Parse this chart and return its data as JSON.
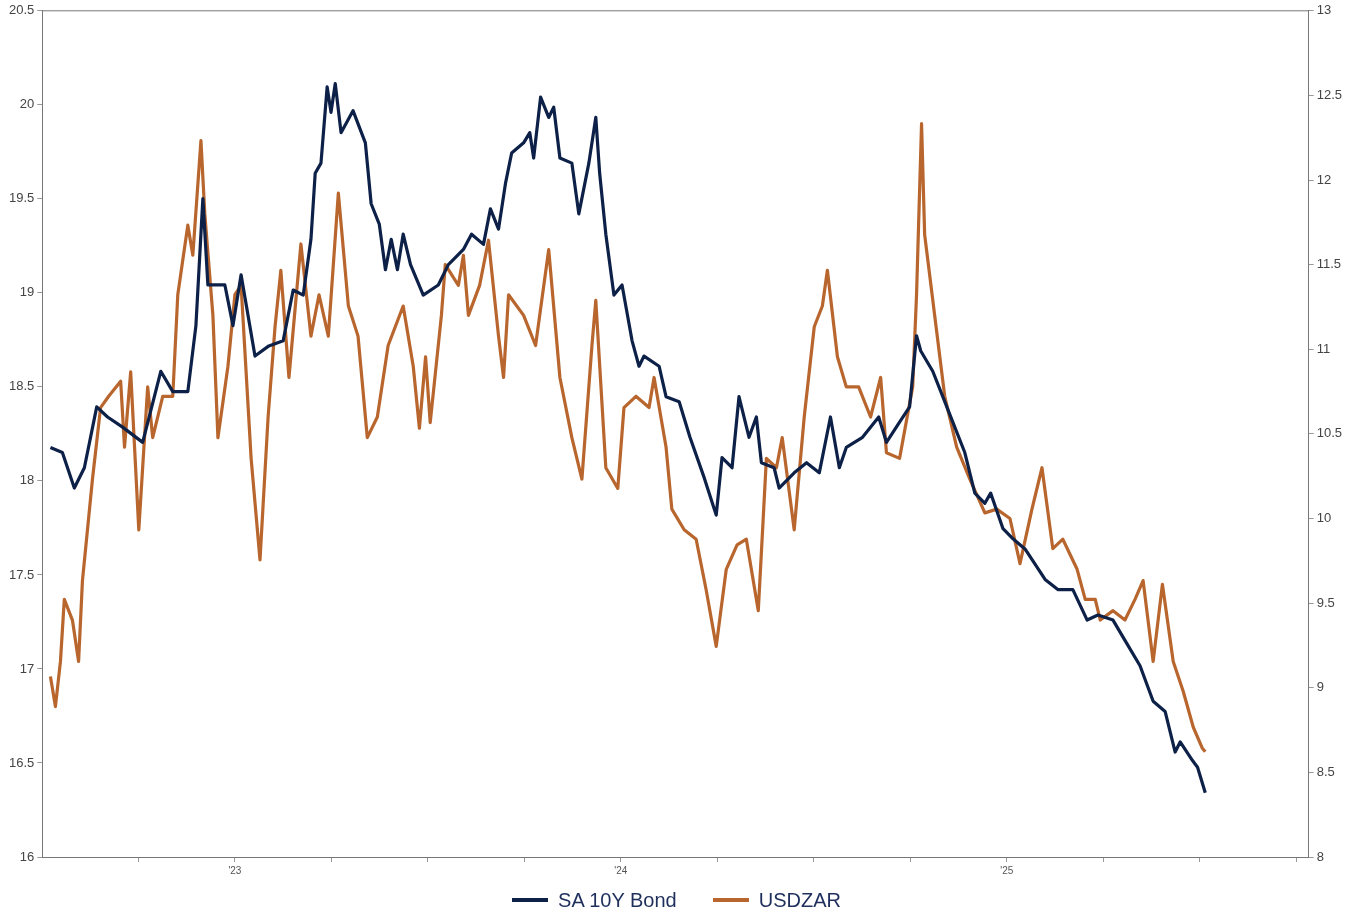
{
  "chart_data": {
    "type": "line",
    "legend": "bottom",
    "grid": false,
    "marker": "none",
    "line_style": "solid",
    "xlim": [
      2022.501,
      2025.782
    ],
    "xticks": [
      {
        "value": 2022.75,
        "label": null
      },
      {
        "value": 2023,
        "label": "'23"
      },
      {
        "value": 2023.25,
        "label": null
      },
      {
        "value": 2023.5,
        "label": null
      },
      {
        "value": 2023.75,
        "label": null
      },
      {
        "value": 2024,
        "label": "'24"
      },
      {
        "value": 2024.25,
        "label": null
      },
      {
        "value": 2024.5,
        "label": null
      },
      {
        "value": 2024.75,
        "label": null
      },
      {
        "value": 2025,
        "label": "'25"
      },
      {
        "value": 2025.25,
        "label": null
      },
      {
        "value": 2025.5,
        "label": null
      },
      {
        "value": 2025.75,
        "label": null
      }
    ],
    "ylim": [
      16,
      20.5
    ],
    "yticks": [
      16,
      16.5,
      17,
      17.5,
      18,
      18.5,
      19,
      19.5,
      20,
      20.5
    ],
    "y2lim": [
      8,
      13
    ],
    "y2ticks": [
      8,
      8.5,
      9,
      9.5,
      10,
      10.5,
      11,
      11.5,
      12,
      12.5,
      13
    ],
    "series": [
      {
        "name": "SA 10Y Bond",
        "color": "#0d2148",
        "axis": "y2",
        "x": [
          2022.522,
          2022.553,
          2022.584,
          2022.61,
          2022.642,
          2022.67,
          2022.709,
          2022.761,
          2022.808,
          2022.839,
          2022.878,
          2022.899,
          2022.917,
          2022.93,
          2022.974,
          2022.995,
          2023.016,
          2023.052,
          2023.088,
          2023.125,
          2023.151,
          2023.177,
          2023.197,
          2023.208,
          2023.223,
          2023.239,
          2023.249,
          2023.26,
          2023.275,
          2023.306,
          2023.338,
          2023.353,
          2023.374,
          2023.39,
          2023.405,
          2023.421,
          2023.436,
          2023.455,
          2023.488,
          2023.527,
          2023.553,
          2023.592,
          2023.613,
          2023.644,
          2023.662,
          2023.683,
          2023.701,
          2023.717,
          2023.748,
          2023.764,
          2023.774,
          2023.792,
          2023.813,
          2023.826,
          2023.842,
          2023.873,
          2023.891,
          2023.917,
          2023.935,
          2023.945,
          2023.961,
          2023.982,
          2024.003,
          2024.029,
          2024.047,
          2024.06,
          2024.099,
          2024.117,
          2024.151,
          2024.179,
          2024.216,
          2024.247,
          2024.262,
          2024.288,
          2024.306,
          2024.332,
          2024.351,
          2024.364,
          2024.397,
          2024.41,
          2024.449,
          2024.481,
          2024.514,
          2024.543,
          2024.566,
          2024.584,
          2024.626,
          2024.668,
          2024.688,
          2024.722,
          2024.748,
          2024.766,
          2024.777,
          2024.808,
          2024.834,
          2024.86,
          2024.891,
          2024.917,
          2024.943,
          2024.958,
          2024.99,
          2025.016,
          2025.047,
          2025.073,
          2025.099,
          2025.132,
          2025.171,
          2025.208,
          2025.236,
          2025.275,
          2025.306,
          2025.345,
          2025.379,
          2025.41,
          2025.436,
          2025.449,
          2025.481,
          2025.494,
          2025.514
        ],
        "values": [
          10.42,
          10.39,
          10.18,
          10.3,
          10.66,
          10.6,
          10.54,
          10.45,
          10.87,
          10.75,
          10.75,
          11.14,
          11.89,
          11.38,
          11.38,
          11.14,
          11.44,
          10.96,
          11.02,
          11.05,
          11.35,
          11.32,
          11.65,
          12.04,
          12.1,
          12.55,
          12.4,
          12.57,
          12.28,
          12.41,
          12.22,
          11.86,
          11.74,
          11.47,
          11.65,
          11.47,
          11.68,
          11.5,
          11.32,
          11.38,
          11.5,
          11.59,
          11.68,
          11.62,
          11.83,
          11.71,
          11.98,
          12.16,
          12.22,
          12.28,
          12.13,
          12.49,
          12.37,
          12.43,
          12.13,
          12.1,
          11.8,
          12.1,
          12.37,
          12.04,
          11.68,
          11.32,
          11.38,
          11.05,
          10.9,
          10.96,
          10.9,
          10.72,
          10.69,
          10.48,
          10.24,
          10.02,
          10.36,
          10.3,
          10.72,
          10.48,
          10.6,
          10.33,
          10.3,
          10.18,
          10.27,
          10.33,
          10.27,
          10.6,
          10.3,
          10.42,
          10.48,
          10.6,
          10.45,
          10.57,
          10.66,
          11.08,
          10.99,
          10.87,
          10.72,
          10.57,
          10.39,
          10.15,
          10.09,
          10.15,
          9.94,
          9.88,
          9.82,
          9.73,
          9.64,
          9.58,
          9.58,
          9.4,
          9.43,
          9.4,
          9.28,
          9.13,
          8.92,
          8.86,
          8.62,
          8.68,
          8.57,
          8.53,
          8.38
        ]
      },
      {
        "name": "USDZAR",
        "color": "#b8662e",
        "x": [
          2022.522,
          2022.535,
          2022.548,
          2022.558,
          2022.579,
          2022.595,
          2022.605,
          2022.631,
          2022.652,
          2022.673,
          2022.704,
          2022.714,
          2022.73,
          2022.751,
          2022.774,
          2022.787,
          2022.813,
          2022.839,
          2022.852,
          2022.878,
          2022.891,
          2022.912,
          2022.922,
          2022.943,
          2022.956,
          2022.982,
          2023,
          2023.016,
          2023.042,
          2023.065,
          2023.086,
          2023.104,
          2023.119,
          2023.14,
          2023.171,
          2023.197,
          2023.218,
          2023.242,
          2023.268,
          2023.294,
          2023.319,
          2023.343,
          2023.369,
          2023.397,
          2023.436,
          2023.462,
          2023.478,
          2023.494,
          2023.506,
          2023.535,
          2023.545,
          2023.579,
          2023.592,
          2023.605,
          2023.634,
          2023.657,
          2023.683,
          2023.696,
          2023.709,
          2023.748,
          2023.779,
          2023.813,
          2023.842,
          2023.873,
          2023.899,
          2023.925,
          2023.935,
          2023.961,
          2023.992,
          2024.008,
          2024.039,
          2024.073,
          2024.086,
          2024.117,
          2024.132,
          2024.164,
          2024.195,
          2024.221,
          2024.247,
          2024.273,
          2024.301,
          2024.325,
          2024.356,
          2024.377,
          2024.403,
          2024.418,
          2024.449,
          2024.475,
          2024.501,
          2024.522,
          2024.535,
          2024.561,
          2024.584,
          2024.616,
          2024.647,
          2024.673,
          2024.688,
          2024.722,
          2024.756,
          2024.766,
          2024.779,
          2024.787,
          2024.813,
          2024.839,
          2024.87,
          2024.904,
          2024.943,
          2024.974,
          2025.008,
          2025.034,
          2025.065,
          2025.091,
          2025.119,
          2025.145,
          2025.182,
          2025.203,
          2025.229,
          2025.242,
          2025.275,
          2025.306,
          2025.332,
          2025.353,
          2025.379,
          2025.403,
          2025.431,
          2025.457,
          2025.483,
          2025.506,
          2025.514
        ],
        "values": [
          16.96,
          16.8,
          17.04,
          17.37,
          17.26,
          17.04,
          17.47,
          18.01,
          18.39,
          18.45,
          18.53,
          18.18,
          18.58,
          17.74,
          18.5,
          18.23,
          18.45,
          18.45,
          18.99,
          19.36,
          19.2,
          19.81,
          19.42,
          18.88,
          18.23,
          18.61,
          18.99,
          19.04,
          18.12,
          17.58,
          18.34,
          18.82,
          19.12,
          18.55,
          19.26,
          18.77,
          18.99,
          18.77,
          19.53,
          18.93,
          18.77,
          18.23,
          18.34,
          18.72,
          18.93,
          18.61,
          18.28,
          18.66,
          18.31,
          18.88,
          19.15,
          19.04,
          19.2,
          18.88,
          19.04,
          19.28,
          18.77,
          18.55,
          18.99,
          18.88,
          18.72,
          19.23,
          18.55,
          18.23,
          18.01,
          18.72,
          18.96,
          18.07,
          17.96,
          18.39,
          18.45,
          18.39,
          18.55,
          18.18,
          17.85,
          17.74,
          17.69,
          17.42,
          17.12,
          17.53,
          17.66,
          17.69,
          17.31,
          18.12,
          18.07,
          18.23,
          17.74,
          18.34,
          18.82,
          18.93,
          19.12,
          18.66,
          18.5,
          18.5,
          18.34,
          18.55,
          18.15,
          18.12,
          18.5,
          18.99,
          19.9,
          19.31,
          18.88,
          18.45,
          18.18,
          18.01,
          17.83,
          17.85,
          17.8,
          17.56,
          17.85,
          18.07,
          17.64,
          17.69,
          17.53,
          17.37,
          17.37,
          17.26,
          17.31,
          17.26,
          17.37,
          17.47,
          17.04,
          17.45,
          17.04,
          16.88,
          16.69,
          16.58,
          16.56
        ]
      }
    ]
  }
}
